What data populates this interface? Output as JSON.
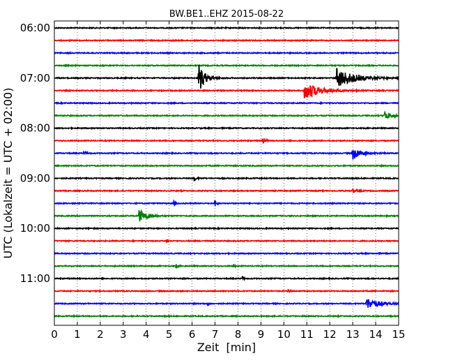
{
  "chart_data": {
    "type": "line",
    "title": "BW.BE1..EHZ 2015-08-22",
    "xlabel": "Zeit  [min]",
    "ylabel": "UTC (Lokalzeit = UTC + 02:00)",
    "xlim": [
      0,
      15
    ],
    "x_ticks": [
      "0",
      "1",
      "2",
      "3",
      "4",
      "5",
      "6",
      "7",
      "8",
      "9",
      "10",
      "11",
      "12",
      "13",
      "14",
      "15"
    ],
    "x_grid": "dotted",
    "row_interval_minutes": 15,
    "color_cycle": [
      "#000000",
      "#ff0000",
      "#0000ff",
      "#008000"
    ],
    "y_ticks": [
      {
        "label": "06:00",
        "row": 0
      },
      {
        "label": "07:00",
        "row": 4
      },
      {
        "label": "08:00",
        "row": 8
      },
      {
        "label": "09:00",
        "row": 12
      },
      {
        "label": "10:00",
        "row": 16
      },
      {
        "label": "11:00",
        "row": 20
      }
    ],
    "series": [
      {
        "start": "06:00",
        "events": []
      },
      {
        "start": "06:15",
        "events": []
      },
      {
        "start": "06:30",
        "events": []
      },
      {
        "start": "06:45",
        "events": []
      },
      {
        "start": "07:00",
        "events": [
          {
            "t": 6.3,
            "amp": 20,
            "dur": 0.25
          },
          {
            "t": 12.3,
            "amp": 14,
            "dur": 0.7
          }
        ]
      },
      {
        "start": "07:15",
        "events": [
          {
            "t": 10.9,
            "amp": 13,
            "dur": 0.6
          }
        ]
      },
      {
        "start": "07:30",
        "events": []
      },
      {
        "start": "07:45",
        "events": [
          {
            "t": 14.4,
            "amp": 6,
            "dur": 0.3
          }
        ]
      },
      {
        "start": "08:00",
        "events": []
      },
      {
        "start": "08:15",
        "events": [
          {
            "t": 9.1,
            "amp": 3,
            "dur": 0.1
          }
        ]
      },
      {
        "start": "08:30",
        "events": [
          {
            "t": 13.0,
            "amp": 9,
            "dur": 0.35
          },
          {
            "t": 1.3,
            "amp": 3,
            "dur": 0.1
          }
        ]
      },
      {
        "start": "08:45",
        "events": []
      },
      {
        "start": "09:00",
        "events": [
          {
            "t": 6.1,
            "amp": 3,
            "dur": 0.1
          }
        ]
      },
      {
        "start": "09:15",
        "events": [
          {
            "t": 13.0,
            "amp": 2,
            "dur": 0.2
          }
        ]
      },
      {
        "start": "09:30",
        "events": [
          {
            "t": 7.0,
            "amp": 6,
            "dur": 0.05
          },
          {
            "t": 5.2,
            "amp": 3,
            "dur": 0.05
          }
        ]
      },
      {
        "start": "09:45",
        "events": [
          {
            "t": 3.7,
            "amp": 10,
            "dur": 0.3
          }
        ]
      },
      {
        "start": "10:00",
        "events": []
      },
      {
        "start": "10:15",
        "events": [
          {
            "t": 4.9,
            "amp": 3,
            "dur": 0.05
          }
        ]
      },
      {
        "start": "10:30",
        "events": []
      },
      {
        "start": "10:45",
        "events": [
          {
            "t": 5.3,
            "amp": 3,
            "dur": 0.05
          },
          {
            "t": 7.8,
            "amp": 2,
            "dur": 0.05
          }
        ]
      },
      {
        "start": "11:00",
        "events": [
          {
            "t": 8.2,
            "amp": 3,
            "dur": 0.05
          }
        ]
      },
      {
        "start": "11:15",
        "events": [
          {
            "t": 10.2,
            "amp": 3,
            "dur": 0.05
          }
        ]
      },
      {
        "start": "11:30",
        "events": [
          {
            "t": 13.6,
            "amp": 8,
            "dur": 0.5
          },
          {
            "t": 6.7,
            "amp": 3,
            "dur": 0.05
          }
        ]
      },
      {
        "start": "11:45",
        "events": []
      }
    ]
  }
}
